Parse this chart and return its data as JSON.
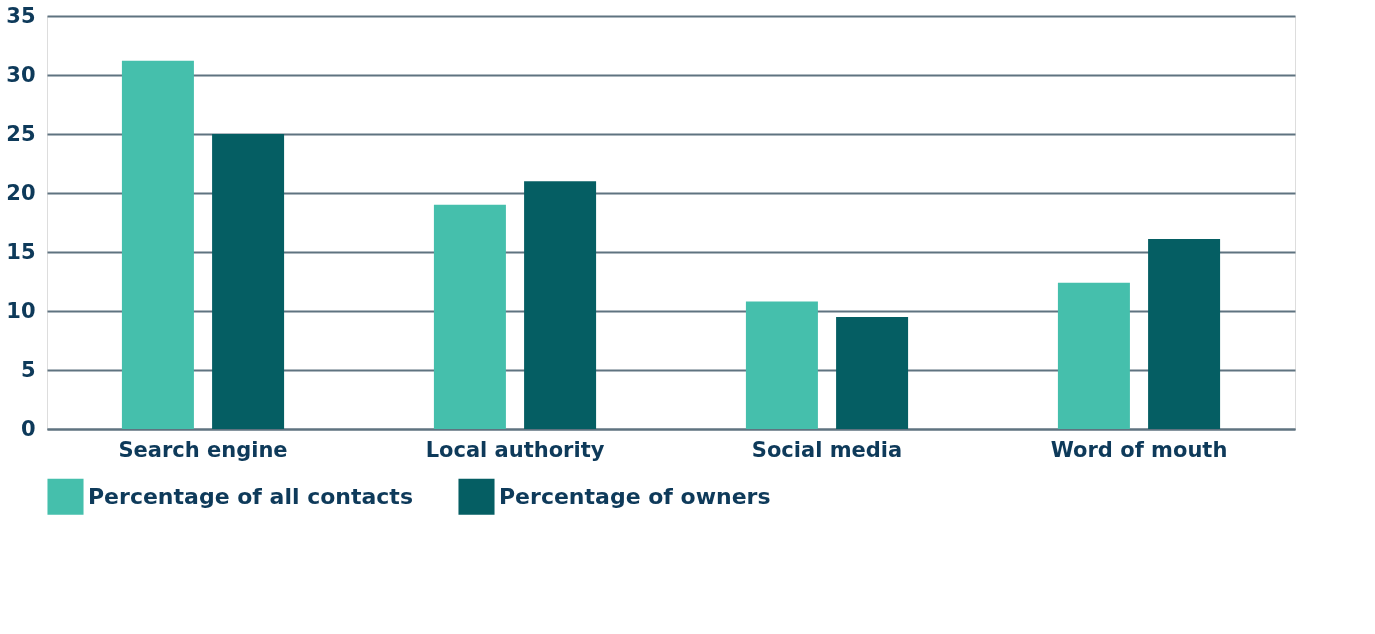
{
  "chart_data": {
    "type": "bar",
    "categories": [
      "Search engine",
      "Local authority",
      "Social media",
      "Word of mouth"
    ],
    "series": [
      {
        "name": "Percentage of all contacts",
        "color": "#45bfac",
        "values": [
          31.2,
          19.0,
          10.8,
          12.4
        ]
      },
      {
        "name": "Percentage of owners",
        "color": "#055e63",
        "values": [
          25.0,
          21.0,
          9.5,
          16.1
        ]
      }
    ],
    "ylim": [
      0,
      35
    ],
    "yticks": [
      0,
      5,
      10,
      15,
      20,
      25,
      30,
      35
    ],
    "grid": "y",
    "legend": "bottom"
  }
}
